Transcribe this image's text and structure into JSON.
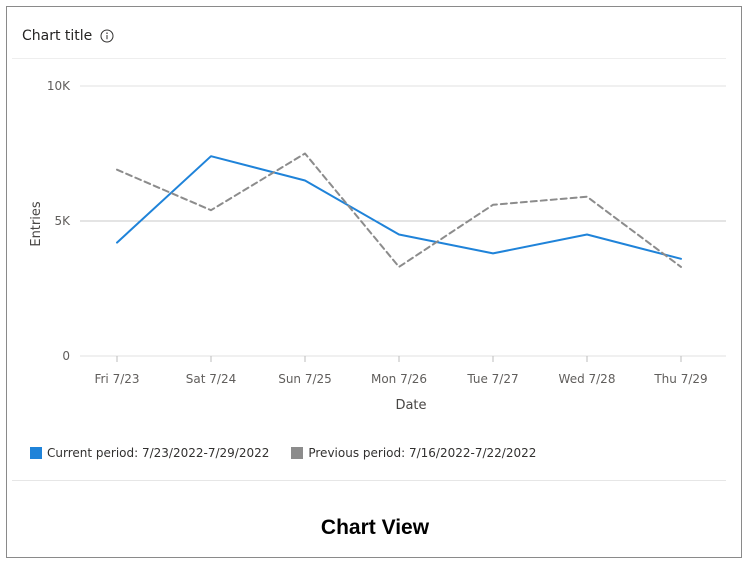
{
  "header": {
    "title": "Chart title",
    "info_icon": "info-circle-icon"
  },
  "caption": "Chart View",
  "colors": {
    "current": "#1f83d9",
    "previous": "#8c8c8c",
    "grid": "#d9d9d9"
  },
  "chart_data": {
    "type": "line",
    "title": "Chart title",
    "xlabel": "Date",
    "ylabel": "Entries",
    "ylim": [
      0,
      10000
    ],
    "yticks": [
      {
        "value": 0,
        "label": "0"
      },
      {
        "value": 5000,
        "label": "5K"
      },
      {
        "value": 10000,
        "label": "10K"
      }
    ],
    "categories": [
      "Fri  7/23",
      "Sat 7/24",
      "Sun 7/25",
      "Mon 7/26",
      "Tue 7/27",
      "Wed 7/28",
      "Thu 7/29"
    ],
    "series": [
      {
        "name": "Current period: 7/23/2022-7/29/2022",
        "style": "solid",
        "values": [
          4200,
          7400,
          6500,
          4500,
          3800,
          4500,
          3600
        ]
      },
      {
        "name": "Previous period: 7/16/2022-7/22/2022",
        "style": "dashed",
        "values": [
          6900,
          5400,
          7500,
          3300,
          5600,
          5900,
          3300
        ]
      }
    ],
    "legend_position": "bottom-left",
    "grid": true
  }
}
